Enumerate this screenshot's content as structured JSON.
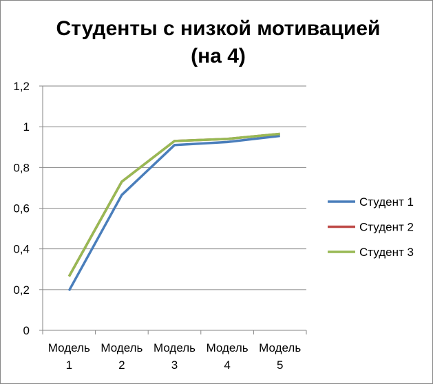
{
  "chart_data": {
    "type": "line",
    "title_lines": [
      "Студенты с низкой мотивацией",
      "(на 4)"
    ],
    "categories": [
      [
        "Модель",
        "1"
      ],
      [
        "Модель",
        "2"
      ],
      [
        "Модель",
        "3"
      ],
      [
        "Модель",
        "4"
      ],
      [
        "Модель",
        "5"
      ]
    ],
    "y_ticks": [
      "0",
      "0,2",
      "0,4",
      "0,6",
      "0,8",
      "1",
      "1,2"
    ],
    "ylim": [
      0,
      1.2
    ],
    "grid": true,
    "legend_position": "right",
    "series": [
      {
        "name": "Студент 1",
        "color": "#4a7ebb",
        "values": [
          0.195,
          0.665,
          0.91,
          0.925,
          0.955
        ]
      },
      {
        "name": "Студент 2",
        "color": "#be4b48",
        "values": [
          0.265,
          0.73,
          0.93,
          0.94,
          0.965
        ]
      },
      {
        "name": "Студент 3",
        "color": "#98b954",
        "values": [
          0.265,
          0.73,
          0.93,
          0.94,
          0.965
        ]
      }
    ]
  }
}
